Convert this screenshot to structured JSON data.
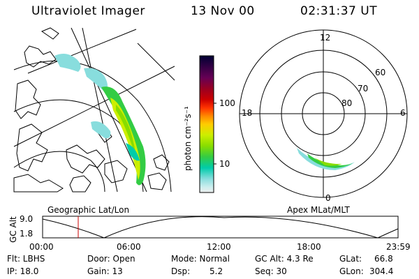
{
  "header": {
    "instrument": "Ultraviolet Imager",
    "date": "13 Nov 00",
    "time": "02:31:37 UT"
  },
  "colorbar": {
    "unit_label": "photon cm⁻²s⁻¹",
    "tick_labels": [
      "100",
      "10"
    ],
    "colors": [
      "#000033",
      "#330044",
      "#660055",
      "#990022",
      "#cc0000",
      "#ff3300",
      "#ff8800",
      "#ffcc00",
      "#ccee00",
      "#88dd00",
      "#33cc44",
      "#00ccaa",
      "#88dddd",
      "#cceeee",
      "#eeeeee"
    ]
  },
  "map_panel": {
    "caption": "Geographic Lat/Lon"
  },
  "polar_panel": {
    "caption": "Apex MLat/MLT",
    "mlt_labels": {
      "top": "12",
      "bottom": "0",
      "left": "18",
      "right": "6"
    },
    "mlat_labels": [
      "60",
      "70",
      "80"
    ]
  },
  "altitude_plot": {
    "ylabel": "GC Alt",
    "y_ticks": [
      "9.0",
      "1.8"
    ],
    "x_ticks": [
      "00:00",
      "06:00",
      "12:00",
      "18:00",
      "23:59"
    ],
    "marker_color": "#cc0000"
  },
  "info": {
    "filter": "Flt: LBHS",
    "ip": "IP: 18.0",
    "door": "Door: Open",
    "gain": "Gain: 13",
    "mode": "Mode: Normal",
    "dsp_label": "Dsp:",
    "dsp_value": "5.2",
    "gc_alt": "GC Alt: 4.3 Re",
    "seq": "Seq: 30",
    "glat_label": "GLat:",
    "glat_value": "66.8",
    "glon_label": "GLon:",
    "glon_value": "304.4"
  }
}
